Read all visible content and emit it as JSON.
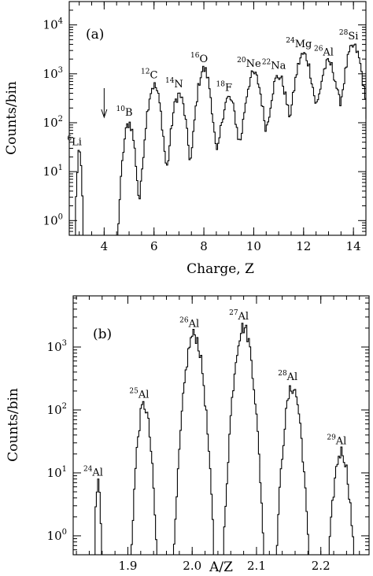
{
  "chart_data": [
    {
      "panel_label": "(a)",
      "type": "histogram",
      "xlabel": "Charge, Z",
      "ylabel": "Counts/bin",
      "xlim": [
        2.6,
        14.5
      ],
      "ylim": [
        0.5,
        30000
      ],
      "yscale": "log",
      "x_ticks": [
        "4",
        "6",
        "8",
        "10",
        "12",
        "14"
      ],
      "y_ticks": [
        {
          "mantissa": "10",
          "exp": "0"
        },
        {
          "mantissa": "10",
          "exp": "1"
        },
        {
          "mantissa": "10",
          "exp": "2"
        },
        {
          "mantissa": "10",
          "exp": "3"
        },
        {
          "mantissa": "10",
          "exp": "4"
        }
      ],
      "peaks": [
        {
          "label": "Li",
          "mass": "6",
          "z": 3,
          "height": 25,
          "width": 0.06
        },
        {
          "label": "B",
          "mass": "10",
          "z": 5,
          "height": 100,
          "width": 0.14
        },
        {
          "label": "C",
          "mass": "12",
          "z": 6,
          "height": 580,
          "width": 0.17
        },
        {
          "label": "N",
          "mass": "14",
          "z": 7,
          "height": 380,
          "width": 0.17
        },
        {
          "label": "O",
          "mass": "16",
          "z": 8,
          "height": 1250,
          "width": 0.17
        },
        {
          "label": "F",
          "mass": "18",
          "z": 9,
          "height": 320,
          "width": 0.19
        },
        {
          "label": "Ne",
          "mass": "20",
          "z": 10,
          "height": 1000,
          "width": 0.2
        },
        {
          "label": "Na",
          "mass": "22",
          "z": 11,
          "height": 900,
          "width": 0.2
        },
        {
          "label": "Mg",
          "mass": "24",
          "z": 12,
          "height": 2500,
          "width": 0.21
        },
        {
          "label": "Al",
          "mass": "26",
          "z": 13,
          "height": 1700,
          "width": 0.21
        },
        {
          "label": "Si",
          "mass": "28",
          "z": 14,
          "height": 3600,
          "width": 0.21
        }
      ],
      "arrow_at_z": 4
    },
    {
      "panel_label": "(b)",
      "type": "histogram",
      "xlabel": "A/Z",
      "ylabel": "Counts/bin",
      "xlim": [
        1.815,
        2.275
      ],
      "ylim": [
        0.5,
        6500
      ],
      "yscale": "log",
      "x_ticks": [
        "1.9",
        "2.0",
        "2.1",
        "2.2"
      ],
      "y_ticks": [
        {
          "mantissa": "10",
          "exp": "0"
        },
        {
          "mantissa": "10",
          "exp": "1"
        },
        {
          "mantissa": "10",
          "exp": "2"
        },
        {
          "mantissa": "10",
          "exp": "3"
        }
      ],
      "peaks": [
        {
          "label": "Al",
          "mass": "24",
          "x": 1.8535,
          "height": 7,
          "width": 0.0025
        },
        {
          "label": "Al",
          "mass": "25",
          "x": 1.925,
          "height": 120,
          "width": 0.006
        },
        {
          "label": "Al",
          "mass": "26",
          "x": 2.003,
          "height": 1600,
          "width": 0.0078
        },
        {
          "label": "Al",
          "mass": "27",
          "x": 2.08,
          "height": 2100,
          "width": 0.0078
        },
        {
          "label": "Al",
          "mass": "28",
          "x": 2.156,
          "height": 230,
          "width": 0.0072
        },
        {
          "label": "Al",
          "mass": "29",
          "x": 2.232,
          "height": 22,
          "width": 0.007
        }
      ]
    }
  ]
}
